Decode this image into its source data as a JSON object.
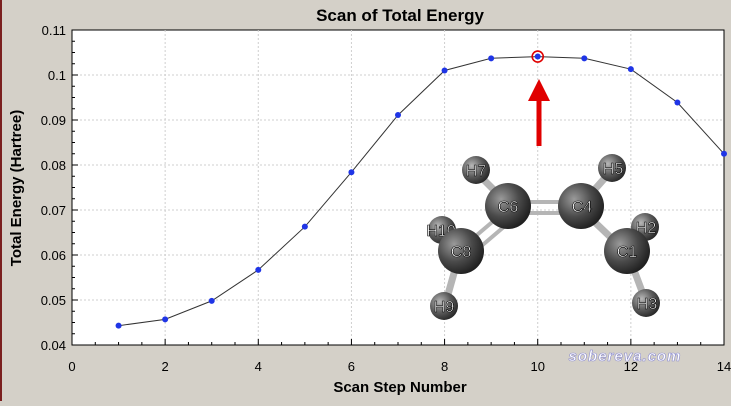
{
  "window": {
    "background": "#d4d0c8",
    "plot_background": "#ffffff"
  },
  "chart_data": {
    "type": "line",
    "title": "Scan of Total Energy",
    "xlabel": "Scan Step Number",
    "ylabel": "Total Energy (Hartree)",
    "xlim": [
      0,
      14
    ],
    "ylim": [
      0.04,
      0.11
    ],
    "x_ticks": [
      "0",
      "2",
      "4",
      "6",
      "8",
      "10",
      "12",
      "14"
    ],
    "y_ticks": [
      "0.04",
      "0.05",
      "0.06",
      "0.07",
      "0.08",
      "0.09",
      "0.1",
      "0.11"
    ],
    "grid": true,
    "legend": "none",
    "series": [
      {
        "x": [
          1,
          2,
          3,
          4,
          5,
          6,
          7,
          8,
          9,
          10,
          11,
          12,
          13,
          14
        ],
        "y": [
          0.0443,
          0.0457,
          0.0498,
          0.0567,
          0.0663,
          0.0784,
          0.0911,
          0.101,
          0.1037,
          0.1041,
          0.1037,
          0.1013,
          0.0939,
          0.0825
        ],
        "color": "#1f35e6"
      }
    ],
    "highlighted_point": {
      "x": 10,
      "y": 0.1041,
      "marker_color": "#e00000"
    },
    "annotation_arrow": {
      "color": "#e00000",
      "points_to_x": 10
    },
    "molecule": {
      "atoms": [
        "H7",
        "C6",
        "C4",
        "H5",
        "H10",
        "C8",
        "C1",
        "H2",
        "H9",
        "H3"
      ]
    },
    "watermark": "sobereva.com",
    "colors": {
      "line": "#333333",
      "points": "#1f35e6",
      "grid": "#cfcfcf",
      "arrow": "#e00000",
      "frame_border": "#7a1f1f"
    }
  }
}
